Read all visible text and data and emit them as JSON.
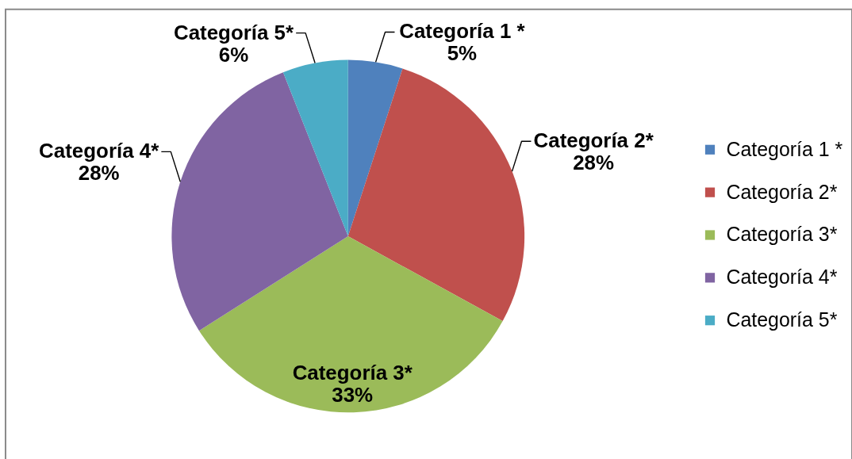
{
  "chart_data": {
    "type": "pie",
    "categories": [
      "Categoría 1 *",
      "Categoría 2*",
      "Categoría 3*",
      "Categoría 4*",
      "Categoría 5*"
    ],
    "values": [
      5,
      28,
      33,
      28,
      6
    ],
    "colors": [
      "#4f81bd",
      "#c0504d",
      "#9bbb59",
      "#8064a2",
      "#4bacc6"
    ],
    "value_labels": [
      "5%",
      "28%",
      "33%",
      "28%",
      "6%"
    ],
    "legend": "right"
  }
}
